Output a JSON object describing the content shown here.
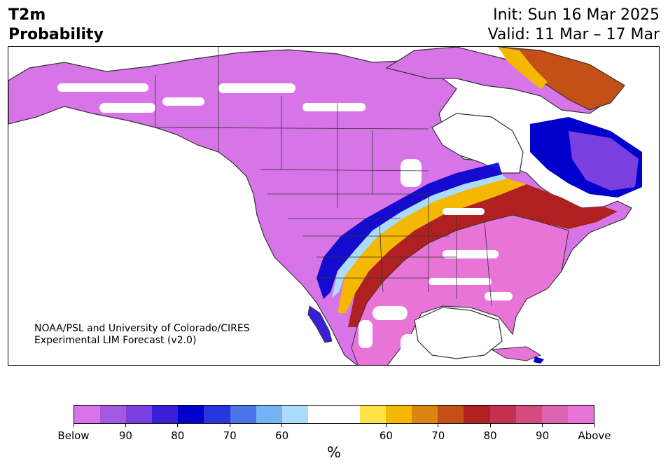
{
  "header": {
    "title_line1": "T2m",
    "title_line2": "Probability",
    "init": "Init: Sun 16 Mar 2025",
    "valid": "Valid: 11 Mar – 17 Mar"
  },
  "credit": {
    "line1": "NOAA/PSL and University of Colorado/CIRES",
    "line2": "Experimental LIM Forecast (v2.0)"
  },
  "colorbar": {
    "colors": [
      "#d774e8",
      "#a358e0",
      "#7b3fe0",
      "#3a1fd8",
      "#0000cc",
      "#2636dc",
      "#4a74e8",
      "#74b4f4",
      "#acdcfc",
      "#ffffff",
      "#ffffff",
      "#ffe246",
      "#f4b800",
      "#dc8410",
      "#c45018",
      "#b02020",
      "#c43050",
      "#d44c7c",
      "#dc64b0",
      "#e874d8"
    ],
    "tick_labels": [
      "Below",
      "90",
      "80",
      "70",
      "60",
      "60",
      "70",
      "80",
      "90",
      "Above"
    ],
    "unit": "%"
  },
  "map": {
    "land_color": "#d774e8",
    "above_color": "#e874d8",
    "coast_color": "#333333"
  }
}
